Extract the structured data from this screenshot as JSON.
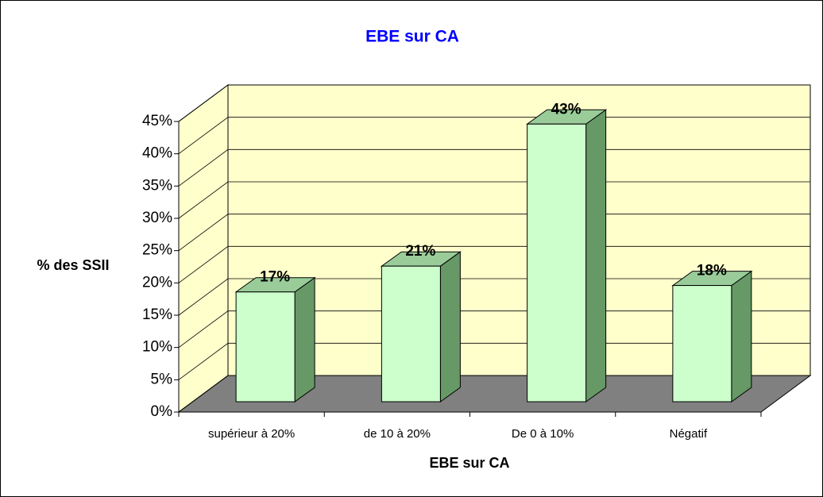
{
  "chart_data": {
    "type": "bar3d",
    "title": "EBE sur CA",
    "x_label": "EBE sur CA",
    "y_label": "% des SSII",
    "categories": [
      "supérieur à 20%",
      "de 10 à 20%",
      "De 0 à 10%",
      "Négatif"
    ],
    "values": [
      17,
      21,
      43,
      18
    ],
    "value_labels": [
      "17%",
      "21%",
      "43%",
      "18%"
    ],
    "color": "#ccffcc",
    "side_color": "#669966",
    "top_color": "#99cc99",
    "wall_color": "#ffffcc",
    "floor_color": "#808080",
    "ylim": [
      0,
      45
    ],
    "yticks": [
      {
        "value": 0,
        "label": "0%"
      },
      {
        "value": 5,
        "label": "5%"
      },
      {
        "value": 10,
        "label": "10%"
      },
      {
        "value": 15,
        "label": "15%"
      },
      {
        "value": 20,
        "label": "20%"
      },
      {
        "value": 25,
        "label": "25%"
      },
      {
        "value": 30,
        "label": "30%"
      },
      {
        "value": 35,
        "label": "35%"
      },
      {
        "value": 40,
        "label": "40%"
      },
      {
        "value": 45,
        "label": "45%"
      }
    ],
    "grid": true
  }
}
